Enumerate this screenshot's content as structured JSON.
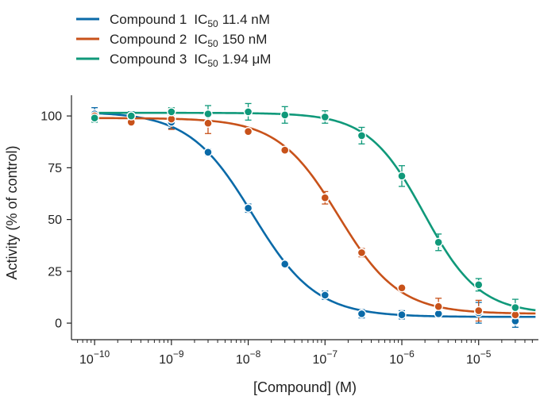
{
  "chart_data": {
    "type": "scatter",
    "xlabel": "[Compound] (M)",
    "ylabel": "Activity (% of control)",
    "xscale": "log",
    "xlim": [
      5e-11,
      6e-05
    ],
    "ylim": [
      -8,
      110
    ],
    "x_ticks": [
      {
        "value": 1e-10,
        "base": "10",
        "exp": "−10"
      },
      {
        "value": 1e-09,
        "base": "10",
        "exp": "−9"
      },
      {
        "value": 1e-08,
        "base": "10",
        "exp": "−8"
      },
      {
        "value": 1e-07,
        "base": "10",
        "exp": "−7"
      },
      {
        "value": 1e-06,
        "base": "10",
        "exp": "−6"
      },
      {
        "value": 1e-05,
        "base": "10",
        "exp": "−5"
      }
    ],
    "y_ticks": [
      {
        "value": 0,
        "label": "0"
      },
      {
        "value": 25,
        "label": "25"
      },
      {
        "value": 50,
        "label": "50"
      },
      {
        "value": 75,
        "label": "75"
      },
      {
        "value": 100,
        "label": "100"
      }
    ],
    "grid": false,
    "legend_position": "top-left",
    "series": [
      {
        "name": "Compound 1",
        "ic50_prefix": "IC",
        "ic50_sub": "50",
        "ic50_value": "11.4 nM",
        "ic50": 1.14e-08,
        "fit": {
          "top": 102,
          "bottom": 3,
          "hill": 1.05
        },
        "color": "#0a6aa8",
        "points": [
          {
            "x": 1e-10,
            "y": 101,
            "err": 3
          },
          {
            "x": 3e-10,
            "y": 100,
            "err": 2
          },
          {
            "x": 1e-09,
            "y": 97,
            "err": 3
          },
          {
            "x": 3e-09,
            "y": 82.5,
            "err": 1.5
          },
          {
            "x": 1e-08,
            "y": 55.5,
            "err": 2
          },
          {
            "x": 3e-08,
            "y": 28.5,
            "err": 1
          },
          {
            "x": 1e-07,
            "y": 13.5,
            "err": 2
          },
          {
            "x": 3e-07,
            "y": 4.5,
            "err": 2
          },
          {
            "x": 1e-06,
            "y": 4,
            "err": 2
          },
          {
            "x": 3e-06,
            "y": 4.5,
            "err": 1
          },
          {
            "x": 1e-05,
            "y": 5,
            "err": 5
          },
          {
            "x": 3e-05,
            "y": 1,
            "err": 3
          }
        ]
      },
      {
        "name": "Compound 2",
        "ic50_prefix": "IC",
        "ic50_sub": "50",
        "ic50_value": "150 nM",
        "ic50": 1.5e-07,
        "fit": {
          "top": 99,
          "bottom": 4.5,
          "hill": 1.1
        },
        "color": "#c8521a",
        "points": [
          {
            "x": 1e-10,
            "y": 100,
            "err": 2
          },
          {
            "x": 3e-10,
            "y": 97,
            "err": 1
          },
          {
            "x": 1e-09,
            "y": 98.5,
            "err": 5
          },
          {
            "x": 3e-09,
            "y": 96.5,
            "err": 5
          },
          {
            "x": 1e-08,
            "y": 92.5,
            "err": 1
          },
          {
            "x": 3e-08,
            "y": 83.5,
            "err": 1
          },
          {
            "x": 1e-07,
            "y": 60.5,
            "err": 3
          },
          {
            "x": 3e-07,
            "y": 34,
            "err": 2
          },
          {
            "x": 1e-06,
            "y": 17,
            "err": 1
          },
          {
            "x": 3e-06,
            "y": 8,
            "err": 4
          },
          {
            "x": 1e-05,
            "y": 6,
            "err": 5
          },
          {
            "x": 3e-05,
            "y": 4,
            "err": 3
          }
        ]
      },
      {
        "name": "Compound 3",
        "ic50_prefix": "IC",
        "ic50_sub": "50",
        "ic50_value": "1.94 μM",
        "ic50": 1.94e-06,
        "fit": {
          "top": 101.5,
          "bottom": 4.5,
          "hill": 1.2
        },
        "color": "#10997a",
        "points": [
          {
            "x": 1e-10,
            "y": 99,
            "err": 2
          },
          {
            "x": 3e-10,
            "y": 100,
            "err": 2
          },
          {
            "x": 1e-09,
            "y": 102,
            "err": 2
          },
          {
            "x": 3e-09,
            "y": 101,
            "err": 4
          },
          {
            "x": 1e-08,
            "y": 102,
            "err": 4
          },
          {
            "x": 3e-08,
            "y": 100.5,
            "err": 4
          },
          {
            "x": 1e-07,
            "y": 99.5,
            "err": 3
          },
          {
            "x": 3e-07,
            "y": 90.5,
            "err": 4
          },
          {
            "x": 1e-06,
            "y": 71,
            "err": 5
          },
          {
            "x": 3e-06,
            "y": 39,
            "err": 4
          },
          {
            "x": 1e-05,
            "y": 18.5,
            "err": 3
          },
          {
            "x": 3e-05,
            "y": 7.5,
            "err": 4
          }
        ]
      }
    ]
  }
}
